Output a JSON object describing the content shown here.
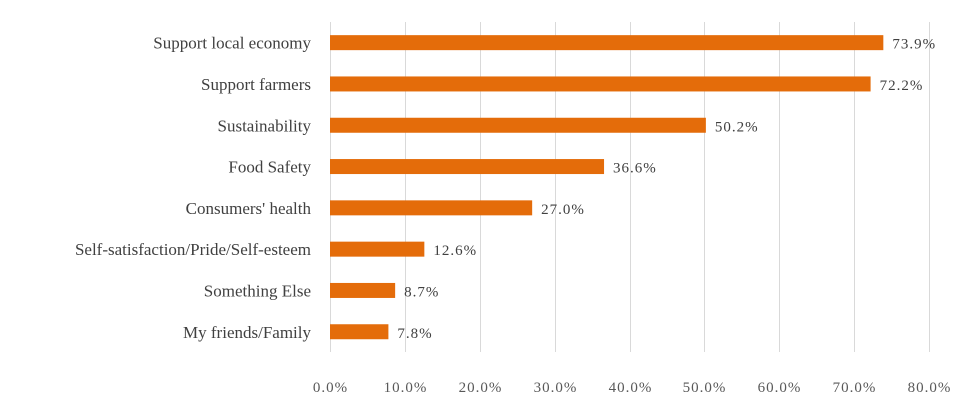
{
  "chart_data": {
    "type": "bar",
    "orientation": "horizontal",
    "categories": [
      "Support local economy",
      "Support farmers",
      "Sustainability",
      "Food Safety",
      "Consumers' health",
      "Self-satisfaction/Pride/Self-esteem",
      "Something Else",
      "My friends/Family"
    ],
    "values": [
      73.9,
      72.2,
      50.2,
      36.6,
      27.0,
      12.6,
      8.7,
      7.8
    ],
    "data_labels": [
      "73.9%",
      "72.2%",
      "50.2%",
      "36.6%",
      "27.0%",
      "12.6%",
      "8.7%",
      "7.8%"
    ],
    "x_ticks": [
      "0.0%",
      "10.0%",
      "20.0%",
      "30.0%",
      "40.0%",
      "50.0%",
      "60.0%",
      "70.0%",
      "80.0%"
    ],
    "xlim": [
      0,
      80
    ],
    "grid": true,
    "legend": "none",
    "title": "",
    "xlabel": "",
    "ylabel": "",
    "bar_color": "#E46C0A"
  }
}
